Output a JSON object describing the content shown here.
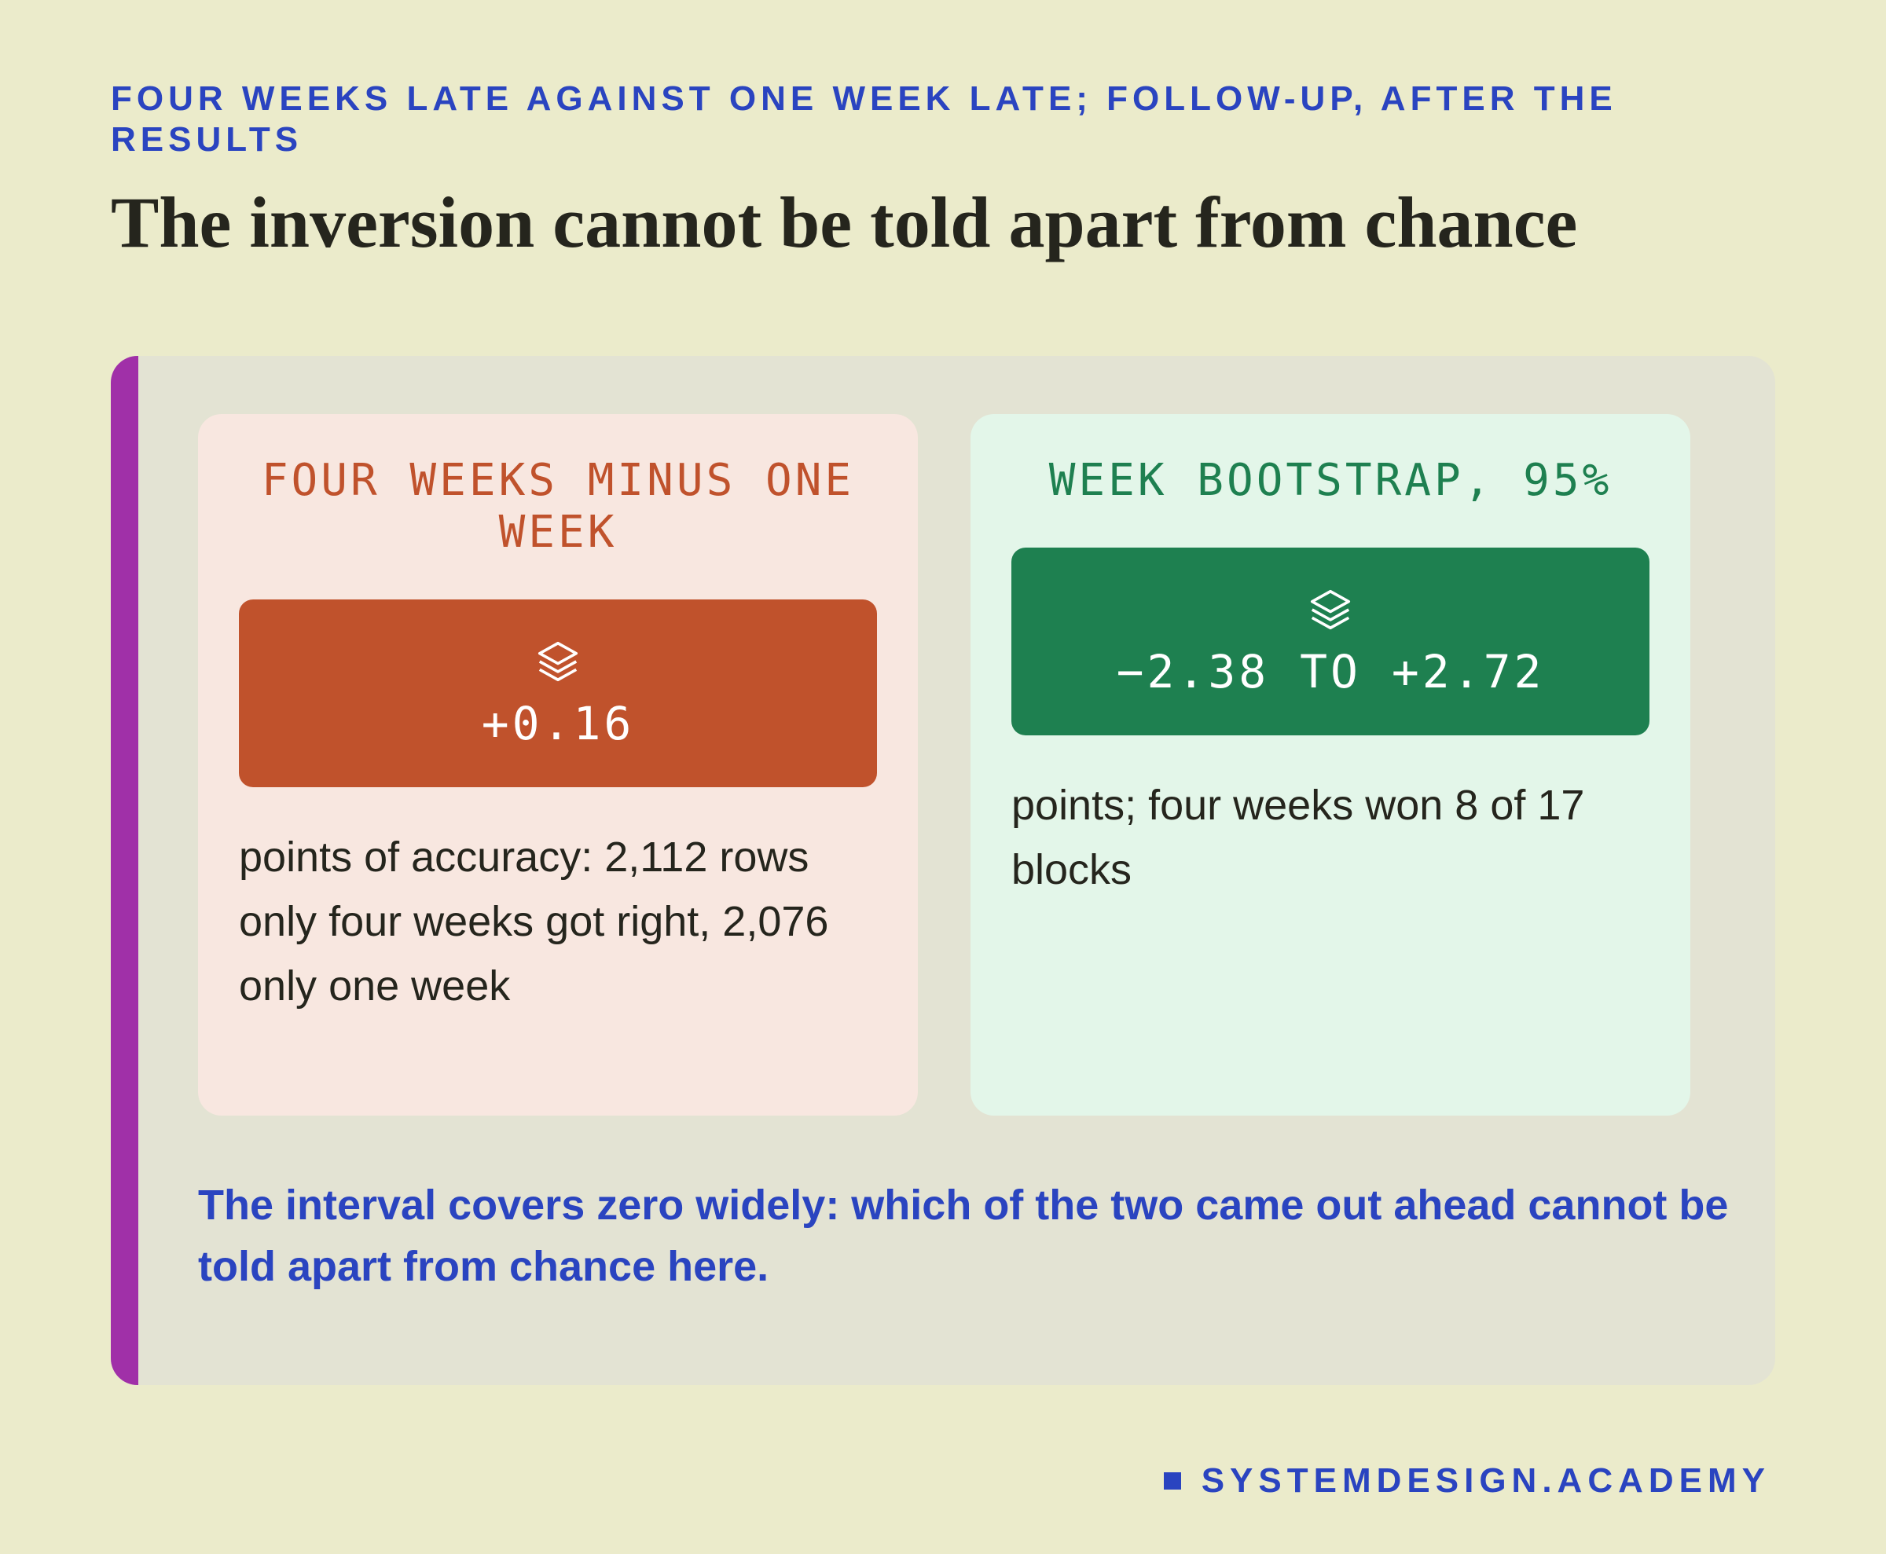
{
  "header": {
    "eyebrow": "FOUR WEEKS LATE AGAINST ONE WEEK LATE; FOLLOW-UP, AFTER THE RESULTS",
    "title": "The inversion cannot be told apart from chance"
  },
  "panels": [
    {
      "label": "FOUR WEEKS MINUS ONE WEEK",
      "value": "+0.16",
      "description": "points of accuracy: 2,112 rows only four weeks got right, 2,076 only one week"
    },
    {
      "label": "WEEK BOOTSTRAP, 95%",
      "value": "−2.38 TO +2.72",
      "description": "points; four weeks won 8 of 17 blocks"
    }
  ],
  "note": "The interval covers zero widely: which of the two came out ahead cannot be told apart from chance here.",
  "brand": "SYSTEMDESIGN.ACADEMY"
}
